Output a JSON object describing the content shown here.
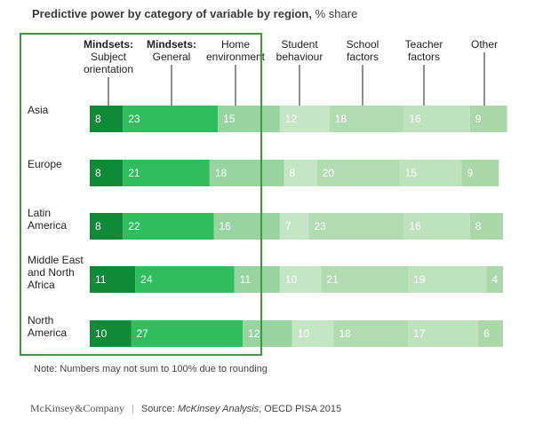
{
  "title": {
    "main": "Predictive power by category of variable by region,",
    "unit": "% share"
  },
  "chart_data": {
    "type": "bar",
    "stacked": true,
    "orientation": "horizontal",
    "categories": [
      "Asia",
      "Europe",
      "Latin\nAmerica",
      "Middle East\nand North\nAfrica",
      "North\nAmerica"
    ],
    "series": [
      {
        "name": "Mindsets: Subject orientation",
        "label_bold": "Mindsets:",
        "label_rest": "Subject\norientation",
        "color": "#0f8a37",
        "text_color": "#ffffff",
        "values": [
          8,
          8,
          8,
          11,
          10
        ]
      },
      {
        "name": "Mindsets: General",
        "label_bold": "Mindsets:",
        "label_rest": "General",
        "color": "#2fbd5e",
        "text_color": "#ffffff",
        "values": [
          23,
          21,
          22,
          24,
          27
        ]
      },
      {
        "name": "Home environment",
        "label_bold": "",
        "label_rest": "Home\nenvironment",
        "color": "#98d49f",
        "text_color": "#ffffff",
        "values": [
          15,
          18,
          16,
          11,
          12
        ]
      },
      {
        "name": "Student behaviour",
        "label_bold": "",
        "label_rest": "Student\nbehaviour",
        "color": "#c4e6c4",
        "text_color": "#ffffff",
        "values": [
          12,
          8,
          7,
          10,
          10
        ]
      },
      {
        "name": "School factors",
        "label_bold": "",
        "label_rest": "School\nfactors",
        "color": "#b1dbb0",
        "text_color": "#ffffff",
        "values": [
          18,
          20,
          23,
          21,
          18
        ]
      },
      {
        "name": "Teacher factors",
        "label_bold": "",
        "label_rest": "Teacher\nfactors",
        "color": "#bde2bc",
        "text_color": "#ffffff",
        "values": [
          16,
          15,
          16,
          19,
          17
        ]
      },
      {
        "name": "Other",
        "label_bold": "",
        "label_rest": "Other",
        "color": "#abd8a9",
        "text_color": "#ffffff",
        "values": [
          9,
          9,
          8,
          4,
          6
        ]
      }
    ],
    "highlight_box_color": "#3f9a3f"
  },
  "note": "Note: Numbers may not sum to 100% due to rounding",
  "footer": {
    "brand": "McKinsey&Company",
    "source_prefix": "Source: ",
    "source_italic": "McKinsey Analysis",
    "source_rest": ", OECD PISA 2015"
  }
}
